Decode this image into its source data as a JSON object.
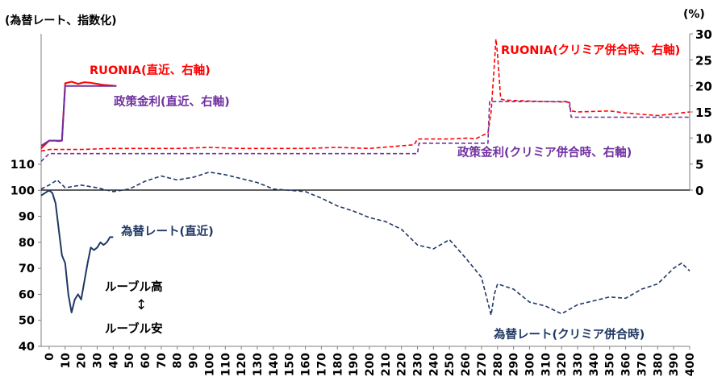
{
  "chart_data": {
    "type": "line",
    "title": "(為替レート、指数化)",
    "right_unit": "(%)",
    "x_axis": {
      "range": [
        -5,
        400
      ],
      "ticks": [
        0,
        10,
        20,
        30,
        40,
        50,
        60,
        70,
        80,
        90,
        100,
        110,
        120,
        130,
        140,
        150,
        160,
        170,
        180,
        190,
        200,
        210,
        220,
        230,
        240,
        250,
        260,
        270,
        280,
        290,
        300,
        310,
        320,
        330,
        340,
        350,
        360,
        370,
        380,
        390,
        400
      ]
    },
    "left_axis": {
      "range": [
        40,
        110
      ],
      "ticks": [
        40,
        50,
        60,
        70,
        80,
        90,
        100,
        110
      ]
    },
    "right_axis": {
      "range": [
        0,
        30
      ],
      "ticks": [
        0,
        5,
        10,
        15,
        20,
        25,
        30
      ]
    },
    "annotations": {
      "ruble_high": "ルーブル高",
      "ruble_low": "ルーブル安",
      "arrow": "↕"
    },
    "series": [
      {
        "name": "RUONIA(クリミア併合時、右軸)",
        "axis": "right",
        "color": "#ff0000",
        "style": "dashed",
        "x": [
          -5,
          0,
          20,
          40,
          60,
          80,
          100,
          120,
          140,
          160,
          180,
          200,
          220,
          228,
          230,
          250,
          262,
          266,
          274,
          276,
          278,
          279,
          280,
          282,
          284,
          290,
          310,
          324,
          326,
          330,
          350,
          360,
          380,
          400
        ],
        "y": [
          7.5,
          7.8,
          7.8,
          8.0,
          8.0,
          8.0,
          8.2,
          8.0,
          8.0,
          8.0,
          8.2,
          8.0,
          8.5,
          8.7,
          9.8,
          9.8,
          10.0,
          9.8,
          11.0,
          15.0,
          24.0,
          29.0,
          26.0,
          17.5,
          17.3,
          17.2,
          17.0,
          16.9,
          15.2,
          15.0,
          15.2,
          14.8,
          14.3,
          15.0
        ]
      },
      {
        "name": "政策金利(クリミア併合時、右軸)",
        "axis": "right",
        "color": "#7030a0",
        "style": "dashed",
        "x": [
          -5,
          0,
          230,
          231,
          274,
          275,
          325,
          326,
          400
        ],
        "y": [
          5.5,
          7.0,
          7.0,
          9.0,
          9.0,
          17.0,
          17.0,
          14.0,
          14.0
        ]
      },
      {
        "name": "RUONIA(直近、右軸)",
        "axis": "right",
        "color": "#ff0000",
        "style": "solid",
        "x": [
          -5,
          0,
          2,
          4,
          6,
          8,
          10,
          14,
          18,
          22,
          26,
          30,
          34,
          38,
          42
        ],
        "y": [
          8.0,
          9.5,
          9.5,
          9.5,
          9.4,
          9.5,
          20.5,
          20.8,
          20.4,
          20.7,
          20.6,
          20.4,
          20.2,
          20.1,
          20.0
        ]
      },
      {
        "name": "政策金利(直近、右軸)",
        "axis": "right",
        "color": "#7030a0",
        "style": "solid",
        "x": [
          -5,
          0,
          8,
          10,
          42
        ],
        "y": [
          8.5,
          9.5,
          9.5,
          20.0,
          20.0
        ]
      },
      {
        "name": "為替レート(クリミア併合時)",
        "axis": "left",
        "color": "#1f3864",
        "style": "dashed",
        "x": [
          -5,
          0,
          5,
          10,
          20,
          30,
          40,
          50,
          60,
          70,
          80,
          90,
          100,
          110,
          120,
          130,
          140,
          150,
          160,
          170,
          180,
          190,
          200,
          210,
          220,
          230,
          240,
          250,
          260,
          270,
          276,
          278,
          280,
          290,
          300,
          310,
          320,
          330,
          340,
          350,
          360,
          370,
          380,
          390,
          395,
          400
        ],
        "y": [
          100.5,
          102,
          104,
          101,
          102,
          101,
          99.5,
          100.5,
          103.5,
          105.5,
          104,
          105,
          107,
          106,
          104.5,
          103,
          100.5,
          100,
          99.5,
          97,
          94,
          92,
          89.5,
          88,
          85,
          79,
          77.5,
          81,
          74,
          66.5,
          52,
          60,
          64,
          62,
          57,
          55.5,
          52.5,
          56,
          57.5,
          59,
          58.5,
          62,
          64,
          70,
          72,
          69
        ]
      },
      {
        "name": "為替レート(直近)",
        "axis": "left",
        "color": "#1f3864",
        "style": "solid",
        "x": [
          -5,
          0,
          2,
          4,
          6,
          8,
          10,
          12,
          14,
          16,
          18,
          20,
          22,
          24,
          26,
          28,
          30,
          32,
          34,
          36,
          38,
          40
        ],
        "y": [
          98,
          100,
          99,
          95,
          85,
          75,
          72,
          60,
          53,
          58,
          60,
          58,
          65,
          72,
          78,
          77,
          78,
          80,
          79,
          80,
          82,
          82
        ]
      }
    ],
    "labels": {
      "ruonia_recent": "RUONIA(直近、右軸)",
      "policy_recent": "政策金利(直近、右軸)",
      "ruonia_crimea": "RUONIA(クリミア併合時、右軸)",
      "policy_crimea": "政策金利(クリミア併合時、右軸)",
      "fx_recent": "為替レート(直近)",
      "fx_crimea": "為替レート(クリミア併合時)"
    }
  }
}
